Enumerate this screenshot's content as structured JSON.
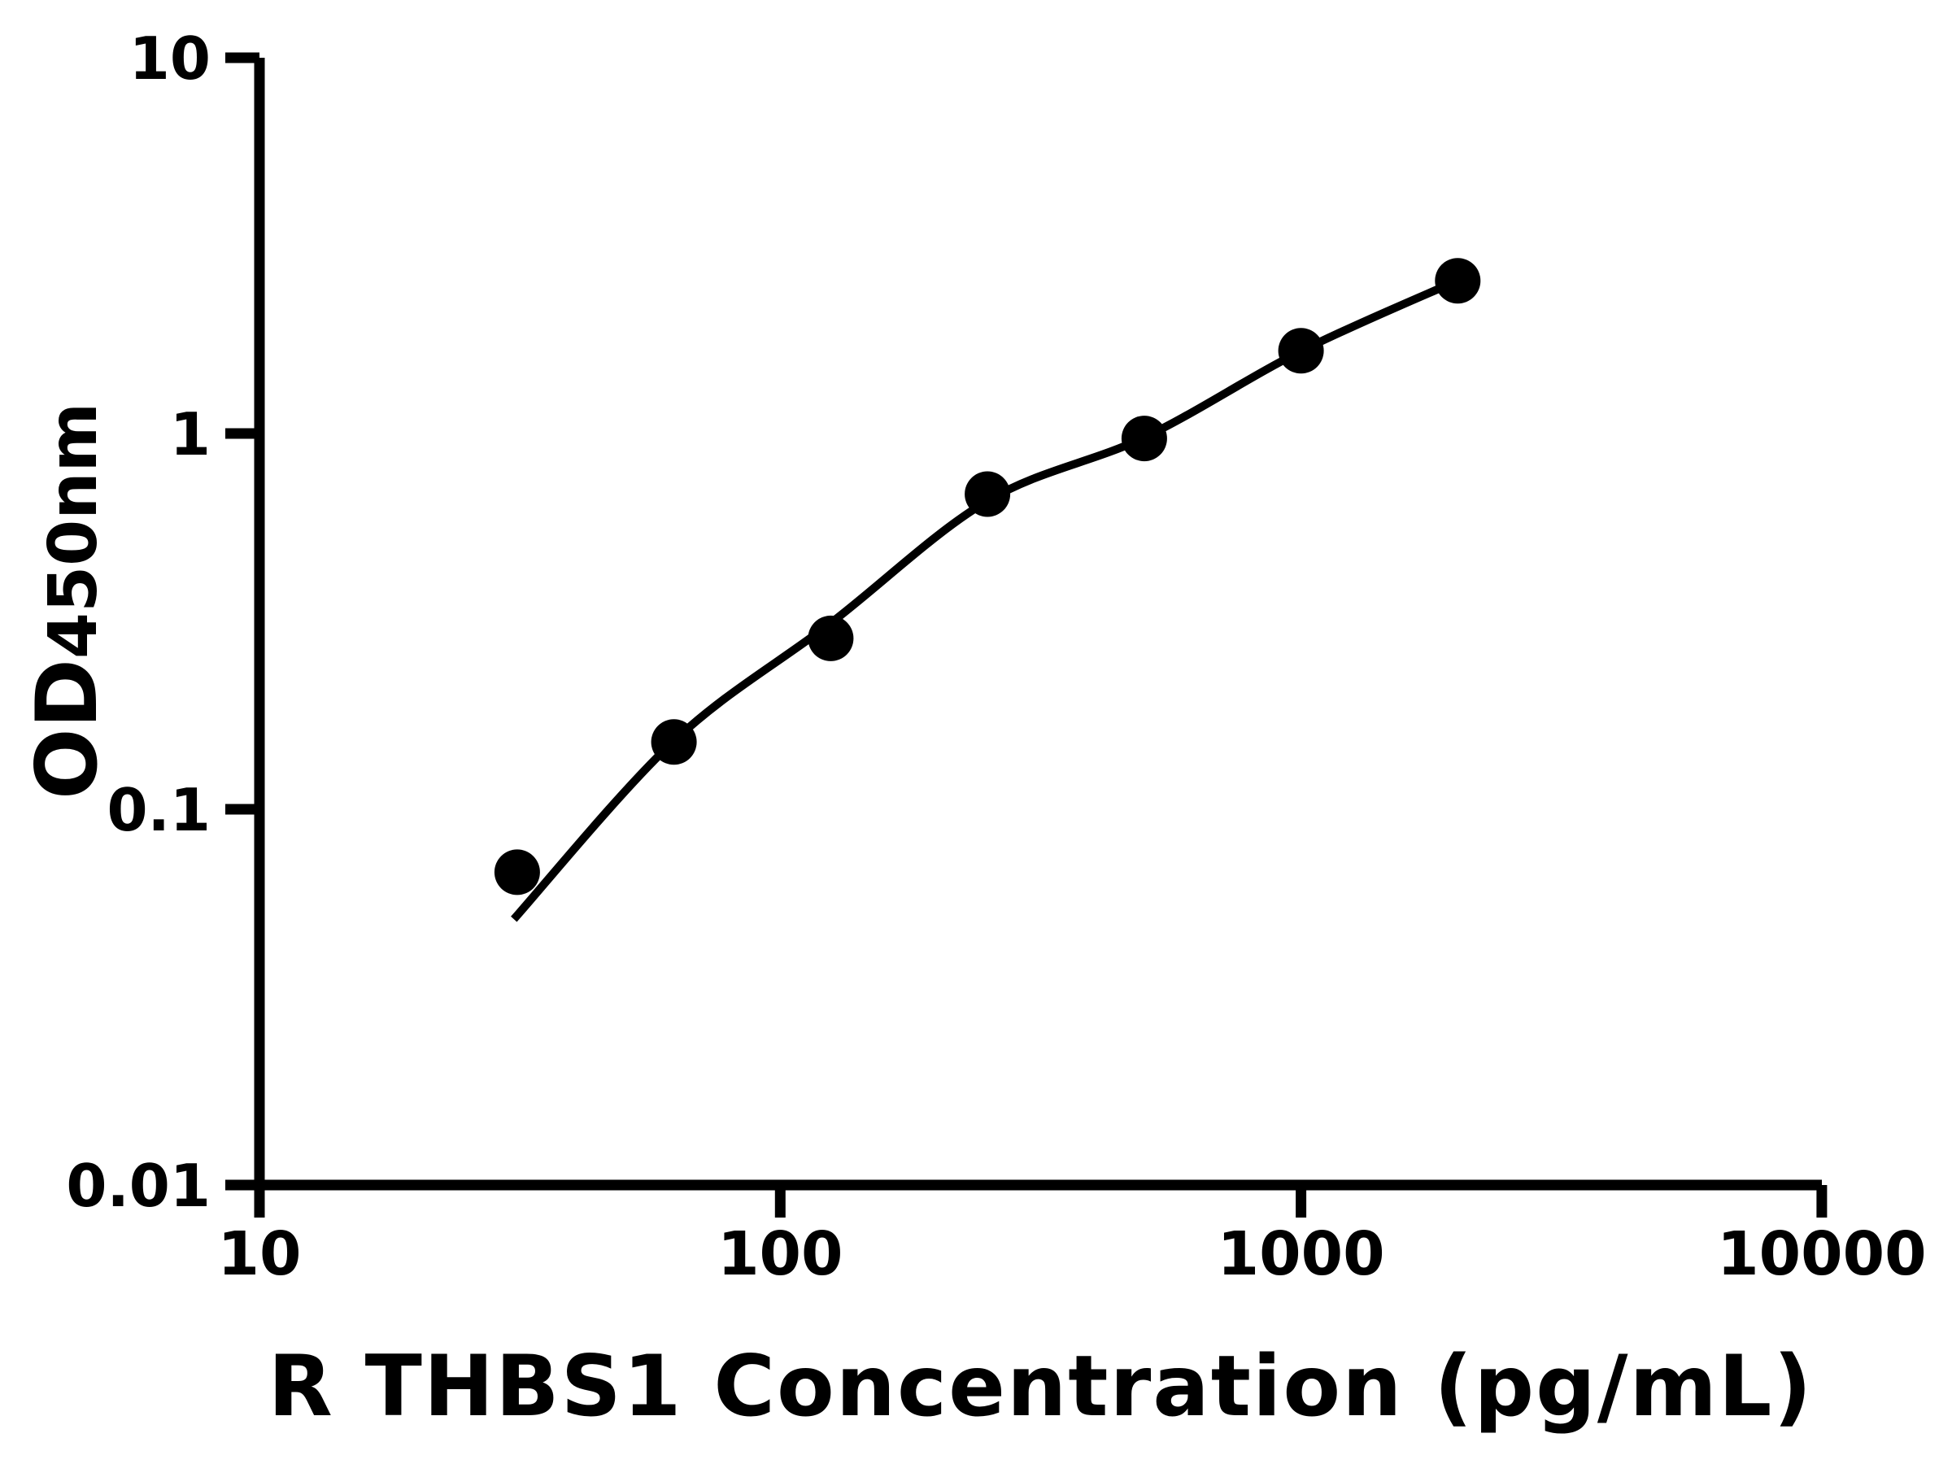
{
  "figure": {
    "background_color": "#ffffff",
    "ink_color": "#000000"
  },
  "chart_data": {
    "type": "scatter",
    "title": "",
    "xlabel": "R THBS1 Concentration (pg/mL)",
    "ylabel": "OD450nm",
    "ylabel_main": "OD",
    "ylabel_subscript": "450nm",
    "x_scale": "log",
    "y_scale": "log",
    "xlim": [
      10,
      10000
    ],
    "ylim": [
      0.01,
      10
    ],
    "x_ticks": [
      10,
      100,
      1000,
      10000
    ],
    "x_tick_labels": [
      "10",
      "100",
      "1000",
      "10000"
    ],
    "y_ticks": [
      10,
      1,
      0.1,
      0.01
    ],
    "y_tick_labels": [
      "10",
      "1",
      "0.1",
      "0.01"
    ],
    "grid": false,
    "legend": null,
    "series": [
      {
        "name": "standard-points",
        "type": "scatter",
        "marker": "filled-circle",
        "color": "#000000",
        "x": [
          31.25,
          62.5,
          125,
          250,
          500,
          1000,
          2000
        ],
        "y": [
          0.068,
          0.151,
          0.285,
          0.69,
          0.97,
          1.66,
          2.55
        ]
      },
      {
        "name": "fit-curve",
        "type": "line",
        "color": "#000000",
        "x": [
          30.8,
          62.5,
          125,
          250,
          500,
          1000,
          2000
        ],
        "y": [
          0.051,
          0.152,
          0.313,
          0.662,
          0.976,
          1.657,
          2.554
        ]
      }
    ]
  }
}
